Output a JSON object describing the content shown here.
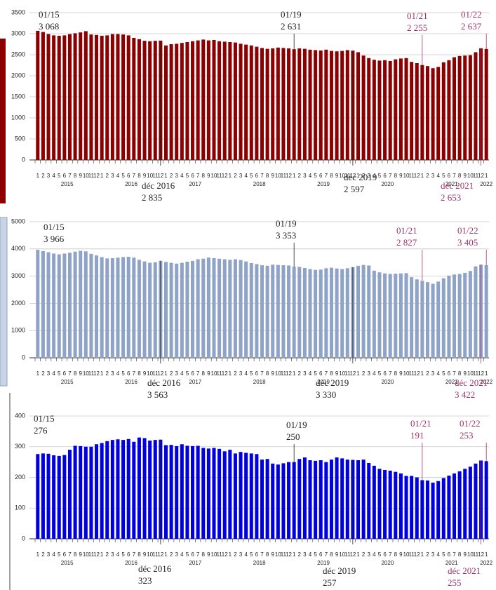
{
  "chart_data": [
    {
      "type": "bar",
      "color": "#8b0000",
      "ylim": [
        0,
        3500
      ],
      "yticks": [
        0,
        500,
        1000,
        1500,
        2000,
        2500,
        3000,
        3500
      ],
      "grid": true,
      "categories": [
        "1",
        "2",
        "3",
        "4",
        "5",
        "6",
        "7",
        "8",
        "9",
        "10",
        "11",
        "12",
        "1",
        "2",
        "3",
        "4",
        "5",
        "6",
        "7",
        "8",
        "9",
        "10",
        "11",
        "12",
        "1",
        "2",
        "3",
        "4",
        "5",
        "6",
        "7",
        "8",
        "9",
        "10",
        "11",
        "12",
        "1",
        "2",
        "3",
        "4",
        "5",
        "6",
        "7",
        "8",
        "9",
        "10",
        "11",
        "12",
        "1",
        "2",
        "3",
        "4",
        "5",
        "6",
        "7",
        "8",
        "9",
        "10",
        "11",
        "12",
        "1",
        "2",
        "3",
        "4",
        "5",
        "6",
        "7",
        "8",
        "9",
        "10",
        "11",
        "12",
        "1",
        "2",
        "3",
        "4",
        "5",
        "6",
        "7",
        "8",
        "9",
        "10",
        "11",
        "12",
        "1"
      ],
      "years": [
        "2015",
        "2016",
        "2017",
        "2018",
        "2019",
        "2020",
        "2021",
        "2022"
      ],
      "values": [
        3068,
        3040,
        2990,
        2960,
        2950,
        2960,
        2990,
        3010,
        3030,
        3060,
        2980,
        2970,
        2950,
        2960,
        2990,
        2990,
        2980,
        2960,
        2900,
        2870,
        2830,
        2820,
        2830,
        2835,
        2720,
        2750,
        2760,
        2780,
        2800,
        2820,
        2840,
        2860,
        2840,
        2850,
        2820,
        2810,
        2800,
        2790,
        2760,
        2740,
        2720,
        2690,
        2660,
        2640,
        2650,
        2670,
        2660,
        2650,
        2631,
        2650,
        2640,
        2620,
        2610,
        2600,
        2620,
        2590,
        2580,
        2590,
        2610,
        2597,
        2560,
        2480,
        2420,
        2380,
        2360,
        2370,
        2350,
        2390,
        2410,
        2420,
        2330,
        2300,
        2255,
        2230,
        2180,
        2210,
        2320,
        2370,
        2440,
        2470,
        2480,
        2490,
        2560,
        2653,
        2637
      ],
      "annotations": [
        {
          "label": "01/15",
          "value": 3068,
          "value_label": "3 068",
          "color": "#222222"
        },
        {
          "label": "01/19",
          "value": 2631,
          "value_label": "2 631",
          "color": "#222222"
        },
        {
          "label": "01/21",
          "value": 2255,
          "value_label": "2 255",
          "color": "#a0336e"
        },
        {
          "label": "01/22",
          "value": 2637,
          "value_label": "2 637",
          "color": "#a0336e"
        },
        {
          "label": "déc 2016",
          "value": 2835,
          "value_label": "2 835",
          "color": "#222222"
        },
        {
          "label": "déc 2019",
          "value": 2597,
          "value_label": "2 597",
          "color": "#222222"
        },
        {
          "label": "déc 2021",
          "value": 2653,
          "value_label": "2 653",
          "color": "#a0336e"
        }
      ]
    },
    {
      "type": "bar",
      "color": "#8fa3c7",
      "ylim": [
        0,
        5000
      ],
      "yticks": [
        0,
        1000,
        2000,
        3000,
        4000,
        5000
      ],
      "grid": true,
      "categories": [
        "1",
        "2",
        "3",
        "4",
        "5",
        "6",
        "7",
        "8",
        "9",
        "10",
        "11",
        "12",
        "1",
        "2",
        "3",
        "4",
        "5",
        "6",
        "7",
        "8",
        "9",
        "10",
        "11",
        "12",
        "1",
        "2",
        "3",
        "4",
        "5",
        "6",
        "7",
        "8",
        "9",
        "10",
        "11",
        "12",
        "1",
        "2",
        "3",
        "4",
        "5",
        "6",
        "7",
        "8",
        "9",
        "10",
        "11",
        "12",
        "1",
        "2",
        "3",
        "4",
        "5",
        "6",
        "7",
        "8",
        "9",
        "10",
        "11",
        "12",
        "1",
        "2",
        "3",
        "4",
        "5",
        "6",
        "7",
        "8",
        "9",
        "10",
        "11",
        "12",
        "1",
        "2",
        "3",
        "4",
        "5",
        "6",
        "7",
        "8",
        "9",
        "10",
        "11",
        "12",
        "1"
      ],
      "years": [
        "2015",
        "2016",
        "2017",
        "2018",
        "2019",
        "2020",
        "2021",
        "2022"
      ],
      "values": [
        3966,
        3920,
        3880,
        3830,
        3800,
        3830,
        3860,
        3900,
        3930,
        3910,
        3820,
        3760,
        3700,
        3650,
        3660,
        3680,
        3700,
        3710,
        3680,
        3600,
        3540,
        3490,
        3510,
        3563,
        3520,
        3490,
        3460,
        3490,
        3530,
        3560,
        3620,
        3640,
        3680,
        3660,
        3640,
        3620,
        3600,
        3620,
        3590,
        3540,
        3480,
        3440,
        3400,
        3380,
        3420,
        3410,
        3400,
        3390,
        3353,
        3340,
        3300,
        3260,
        3230,
        3240,
        3290,
        3310,
        3280,
        3260,
        3290,
        3330,
        3380,
        3410,
        3390,
        3200,
        3140,
        3100,
        3080,
        3090,
        3100,
        3110,
        2960,
        2880,
        2827,
        2780,
        2720,
        2800,
        2920,
        3020,
        3060,
        3080,
        3120,
        3190,
        3360,
        3422,
        3405
      ],
      "annotations": [
        {
          "label": "01/15",
          "value": 3966,
          "value_label": "3 966",
          "color": "#222222"
        },
        {
          "label": "01/19",
          "value": 3353,
          "value_label": "3 353",
          "color": "#222222"
        },
        {
          "label": "01/21",
          "value": 2827,
          "value_label": "2 827",
          "color": "#a0336e"
        },
        {
          "label": "01/22",
          "value": 3405,
          "value_label": "3 405",
          "color": "#a0336e"
        },
        {
          "label": "déc 2016",
          "value": 3563,
          "value_label": "3 563",
          "color": "#222222"
        },
        {
          "label": "déc 2019",
          "value": 3330,
          "value_label": "3 330",
          "color": "#222222"
        },
        {
          "label": "déc 2021",
          "value": 3422,
          "value_label": "3 422",
          "color": "#a0336e"
        }
      ]
    },
    {
      "type": "bar",
      "color": "#0000e0",
      "ylim": [
        0,
        400
      ],
      "yticks": [
        0,
        100,
        200,
        300,
        400
      ],
      "grid": true,
      "categories": [
        "1",
        "2",
        "3",
        "4",
        "5",
        "6",
        "7",
        "8",
        "9",
        "10",
        "11",
        "12",
        "1",
        "2",
        "3",
        "4",
        "5",
        "6",
        "7",
        "8",
        "9",
        "10",
        "11",
        "12",
        "1",
        "2",
        "3",
        "4",
        "5",
        "6",
        "7",
        "8",
        "9",
        "10",
        "11",
        "12",
        "1",
        "2",
        "3",
        "4",
        "5",
        "6",
        "7",
        "8",
        "9",
        "10",
        "11",
        "12",
        "1",
        "2",
        "3",
        "4",
        "5",
        "6",
        "7",
        "8",
        "9",
        "10",
        "11",
        "12",
        "1",
        "2",
        "3",
        "4",
        "5",
        "6",
        "7",
        "8",
        "9",
        "10",
        "11",
        "12",
        "1",
        "2",
        "3",
        "4",
        "5",
        "6",
        "7",
        "8",
        "9",
        "10",
        "11",
        "12",
        "1"
      ],
      "years": [
        "2015",
        "2016",
        "2017",
        "2018",
        "2019",
        "2020",
        "2021",
        "2022"
      ],
      "values": [
        276,
        278,
        277,
        272,
        270,
        273,
        290,
        303,
        302,
        300,
        300,
        308,
        312,
        318,
        322,
        324,
        322,
        325,
        316,
        330,
        328,
        320,
        322,
        323,
        305,
        306,
        302,
        308,
        303,
        302,
        303,
        296,
        294,
        296,
        293,
        285,
        290,
        278,
        283,
        280,
        278,
        276,
        258,
        260,
        245,
        242,
        246,
        250,
        250,
        260,
        265,
        256,
        254,
        256,
        250,
        258,
        265,
        262,
        258,
        257,
        256,
        258,
        247,
        238,
        228,
        224,
        222,
        218,
        213,
        205,
        205,
        200,
        191,
        190,
        183,
        188,
        198,
        206,
        213,
        220,
        228,
        235,
        245,
        255,
        253
      ],
      "annotations": [
        {
          "label": "01/15",
          "value": 276,
          "value_label": "276",
          "color": "#222222"
        },
        {
          "label": "01/19",
          "value": 250,
          "value_label": "250",
          "color": "#222222"
        },
        {
          "label": "01/21",
          "value": 191,
          "value_label": "191",
          "color": "#a0336e"
        },
        {
          "label": "01/22",
          "value": 253,
          "value_label": "253",
          "color": "#a0336e"
        },
        {
          "label": "déc 2016",
          "value": 323,
          "value_label": "323",
          "color": "#222222"
        },
        {
          "label": "déc 2019",
          "value": 257,
          "value_label": "257",
          "color": "#222222"
        },
        {
          "label": "déc 2021",
          "value": 255,
          "value_label": "255",
          "color": "#a0336e"
        }
      ]
    }
  ]
}
